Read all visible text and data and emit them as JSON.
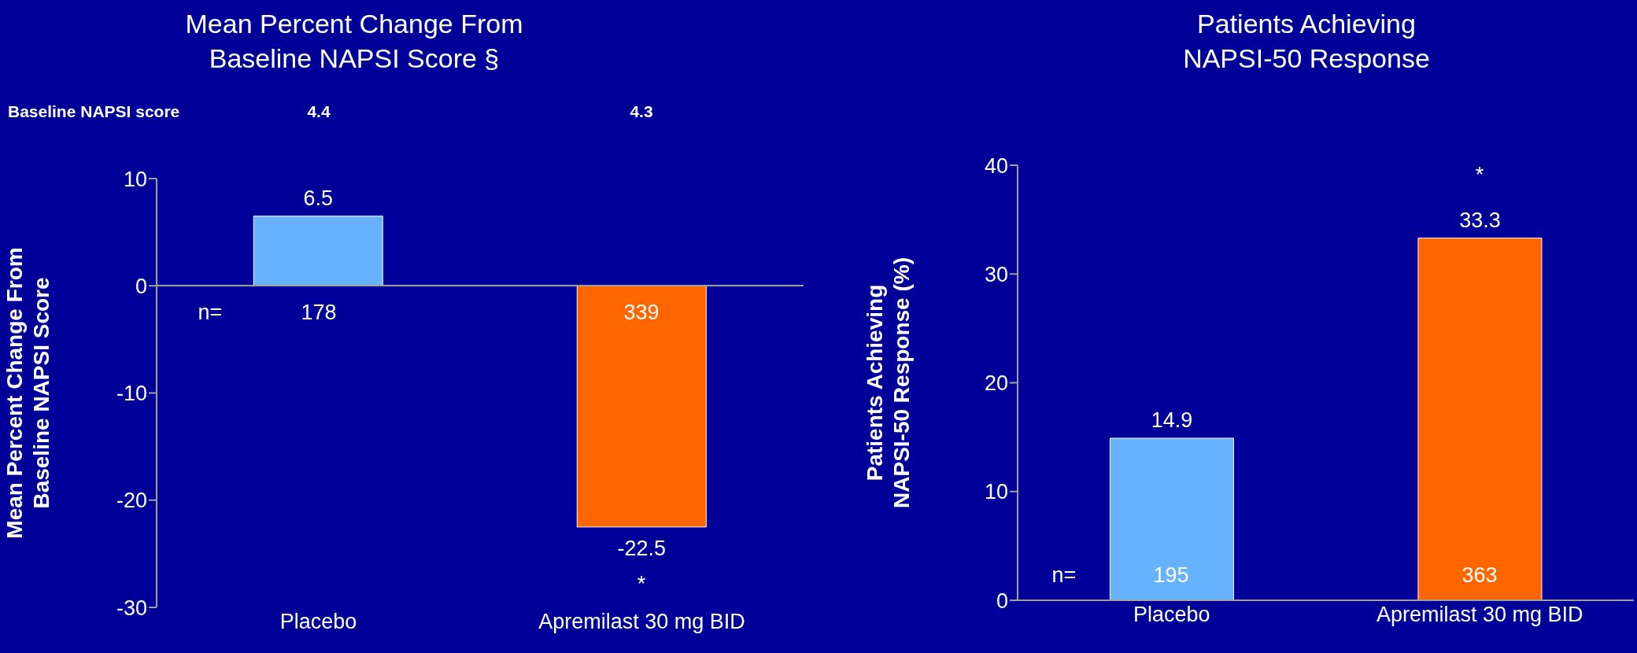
{
  "chart_data": [
    {
      "type": "bar",
      "title": "Mean Percent Change From\nBaseline NAPSI Score §",
      "ylabel": "Mean Percent Change From\nBaseline NAPSI Score",
      "categories": [
        "Placebo",
        "Apremilast 30 mg BID"
      ],
      "values": [
        6.5,
        -22.5
      ],
      "colors": [
        "#66b2ff",
        "#ff6600"
      ],
      "ylim": [
        -30,
        10
      ],
      "yticks": [
        -30,
        -20,
        -10,
        0,
        10
      ],
      "data_labels": true,
      "grid": false,
      "legend": false,
      "annotations": [
        "Baseline NAPSI score",
        "4.4",
        "4.3",
        "n=",
        "178",
        "339",
        "*"
      ]
    },
    {
      "type": "bar",
      "title": "Patients Achieving\nNAPSI-50 Response",
      "ylabel": "Patients Achieving\nNAPSI-50 Response (%)",
      "categories": [
        "Placebo",
        "Apremilast 30 mg BID"
      ],
      "values": [
        14.9,
        33.3
      ],
      "colors": [
        "#66b2ff",
        "#ff6600"
      ],
      "ylim": [
        0,
        40
      ],
      "yticks": [
        0,
        10,
        20,
        30,
        40
      ],
      "data_labels": true,
      "grid": false,
      "legend": false,
      "annotations": [
        "n=",
        "195",
        "363",
        "*"
      ]
    }
  ]
}
